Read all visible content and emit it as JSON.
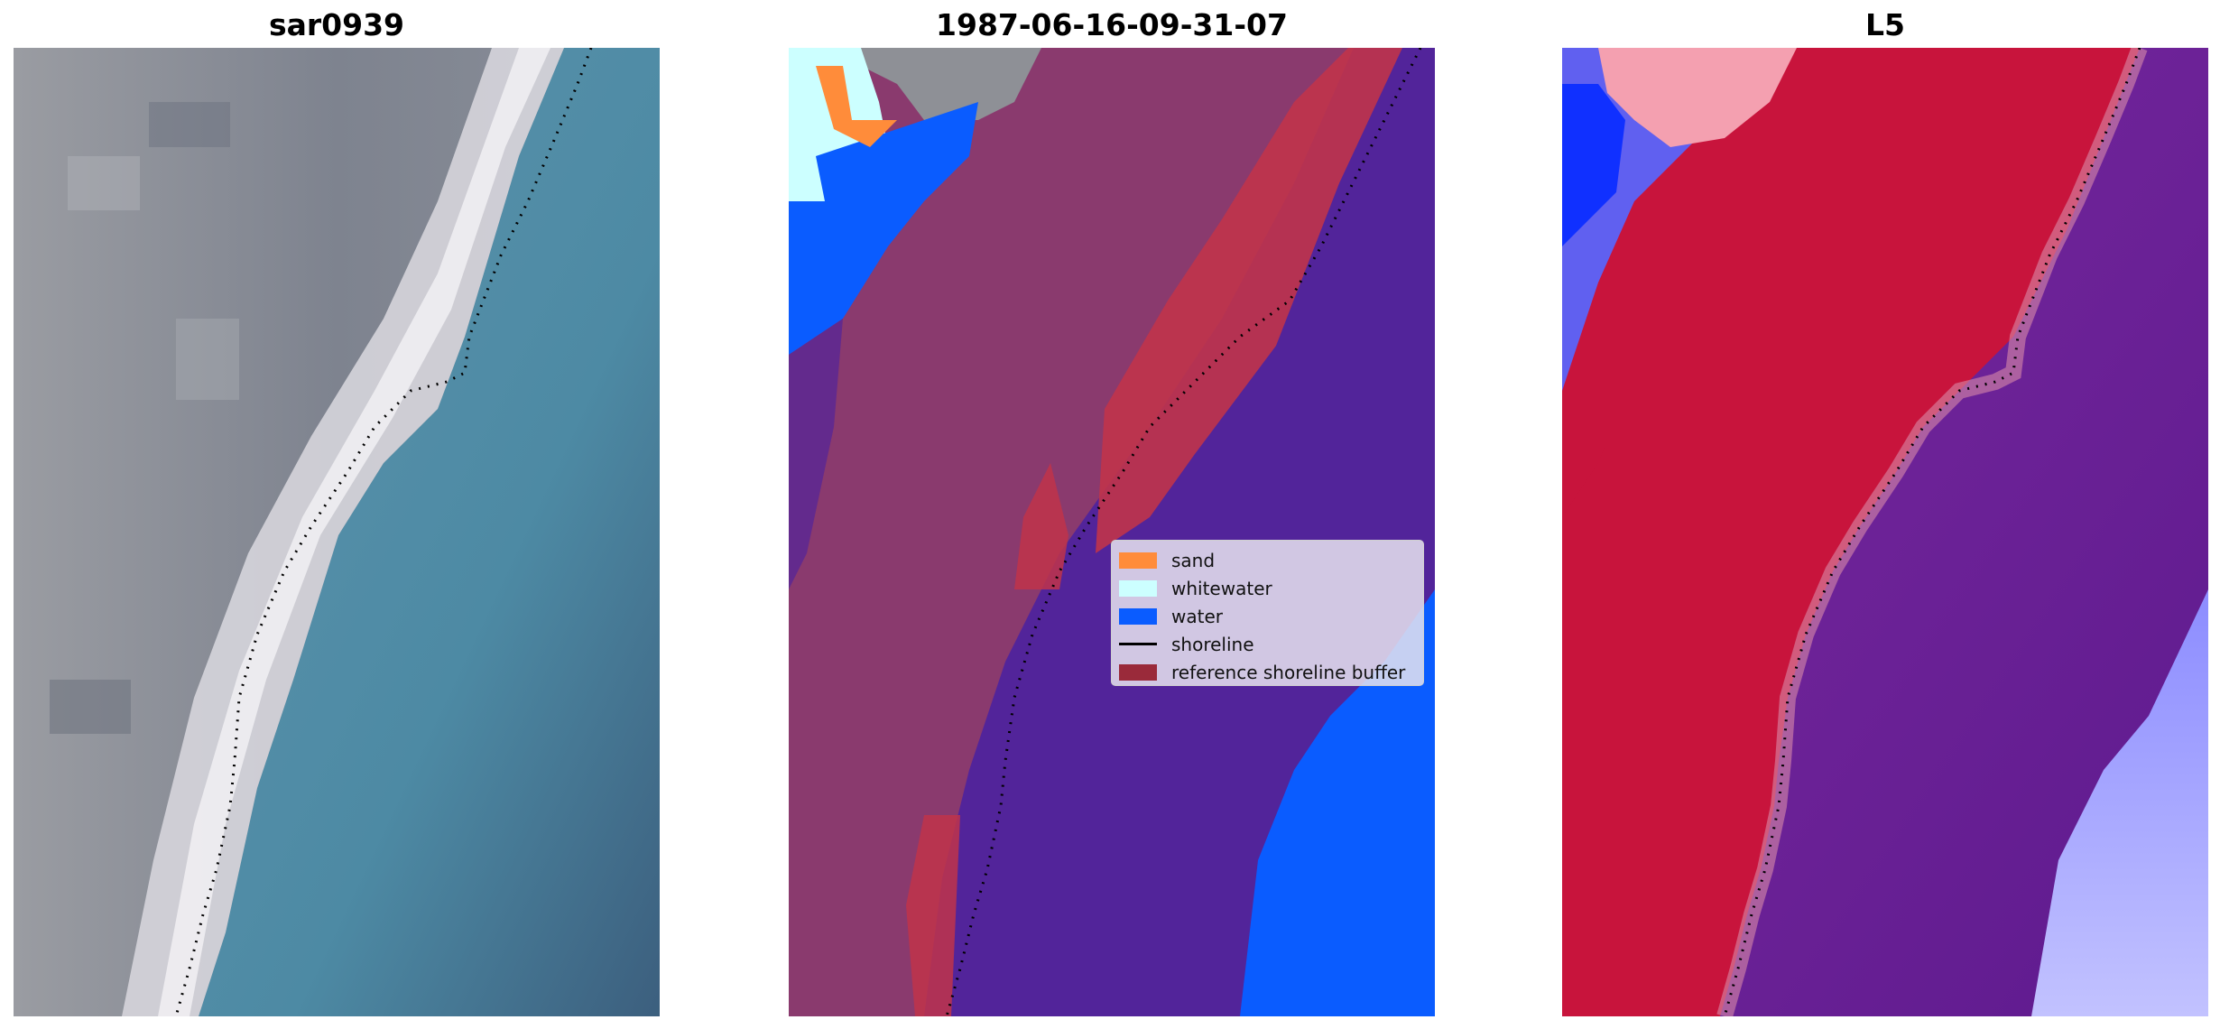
{
  "panels": [
    {
      "title": "sar0939"
    },
    {
      "title": "1987-06-16-09-31-07"
    },
    {
      "title": "L5"
    }
  ],
  "legend": [
    {
      "label": "sand",
      "color": "#ff8c3a",
      "kind": "patch"
    },
    {
      "label": "whitewater",
      "color": "#ccffff",
      "kind": "patch"
    },
    {
      "label": "water",
      "color": "#0a5cff",
      "kind": "patch"
    },
    {
      "label": "shoreline",
      "color": "#000000",
      "kind": "line"
    },
    {
      "label": "reference shoreline buffer",
      "color": "#9a2a3a",
      "kind": "patch"
    }
  ],
  "colors": {
    "rgb_land": "#8a8d96",
    "rgb_sand": "#e9e6ea",
    "rgb_water": "#4f88a0",
    "class_land_overlay": "#8a3a6e",
    "class_water_dark": "#52249a",
    "class_water": "#0a5cff",
    "class_whitewater": "#ccffff",
    "class_sand": "#ff8c3a",
    "class_buffer": "#c0344a",
    "index_red": "#c8143c",
    "index_purple": "#6a1c9a",
    "index_blue": "#1030ff",
    "index_light": "#b8b8ff",
    "shoreline": "#000000"
  }
}
